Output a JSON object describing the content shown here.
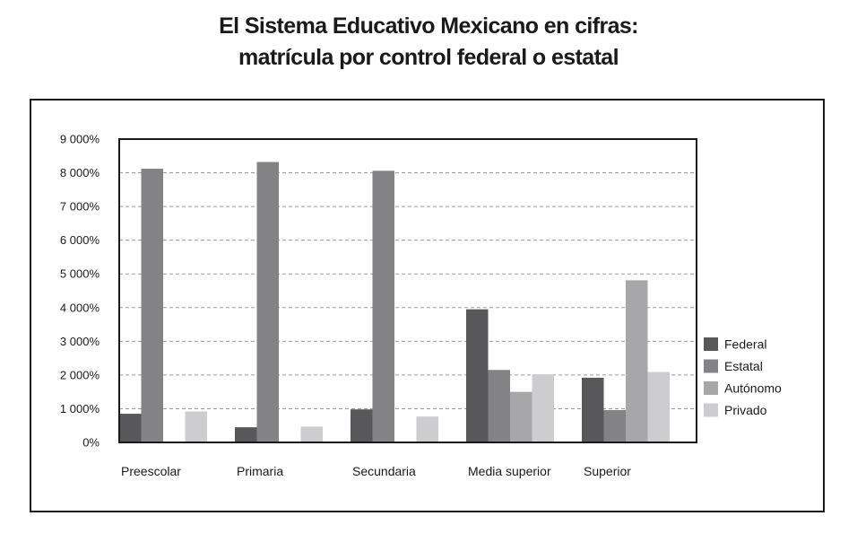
{
  "chart_data": {
    "type": "bar",
    "title_lines": [
      "El Sistema Educativo Mexicano en cifras:",
      "matrícula por control federal o estatal"
    ],
    "xlabel": "",
    "ylabel": "",
    "ylim": [
      0,
      9000
    ],
    "y_ticks": [
      0,
      1000,
      2000,
      3000,
      4000,
      5000,
      6000,
      7000,
      8000,
      9000
    ],
    "y_tick_labels": [
      "0%",
      "1 000%",
      "2 000%",
      "3 000%",
      "4 000%",
      "5 000%",
      "6 000%",
      "7 000%",
      "8 000%",
      "9 000%"
    ],
    "grid": "horizontal dashed",
    "legend_position": "right",
    "categories": [
      "Preescolar",
      "Primaria",
      "Secundaria",
      "Media superior",
      "Superior"
    ],
    "series": [
      {
        "name": "Federal",
        "color": "#58585a",
        "values": [
          850,
          450,
          980,
          3950,
          1920
        ]
      },
      {
        "name": "Estatal",
        "color": "#838385",
        "values": [
          8120,
          8320,
          8060,
          2150,
          960
        ]
      },
      {
        "name": "Autónomo",
        "color": "#a7a7a9",
        "values": [
          0,
          0,
          0,
          1500,
          4810
        ]
      },
      {
        "name": "Privado",
        "color": "#cdcdcf",
        "values": [
          920,
          470,
          770,
          2020,
          2090
        ]
      }
    ]
  }
}
